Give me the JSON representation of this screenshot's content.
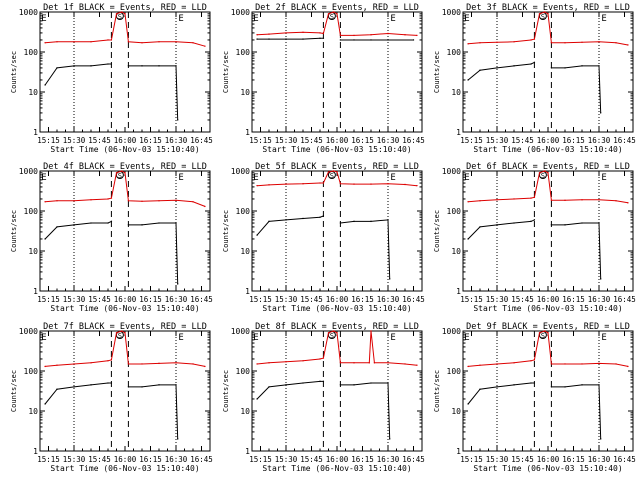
{
  "colors": {
    "events": "#000000",
    "lld": "#dd0000",
    "axes": "#000000",
    "background": "#ffffff"
  },
  "shared": {
    "xlabel": "Start Time (06-Nov-03 15:10:40)",
    "ylabel": "Counts/sec",
    "x_tick_labels": [
      "15:15",
      "15:30",
      "15:45",
      "16:00",
      "16:15",
      "16:30",
      "16:45"
    ],
    "y_tick_labels": [
      "1",
      "10",
      "100",
      "1000"
    ],
    "y_scale": "log",
    "marker_S": "S",
    "marker_E": "E"
  },
  "chart_data": [
    {
      "type": "line",
      "title": "Det 1f BLACK = Events, RED = LLD",
      "xlim": [
        "15:10",
        "16:50"
      ],
      "ylim": [
        1,
        1000
      ],
      "markers": {
        "dotted": [
          "15:30",
          "16:30"
        ],
        "dashed": [
          "15:52",
          "16:02"
        ],
        "S": "15:57",
        "E": "16:33"
      },
      "series": [
        {
          "name": "BLACK = Events",
          "x": [
            "15:13",
            "15:20",
            "15:30",
            "15:40",
            "15:50",
            "15:52",
            "15:58",
            "16:02",
            "16:10",
            "16:20",
            "16:30",
            "16:31"
          ],
          "y": [
            15,
            40,
            45,
            45,
            50,
            50,
            null,
            45,
            45,
            45,
            45,
            2
          ]
        },
        {
          "name": "RED = LLD",
          "x": [
            "15:13",
            "15:20",
            "15:30",
            "15:40",
            "15:50",
            "15:52",
            "15:55",
            "15:58",
            "16:00",
            "16:02",
            "16:10",
            "16:20",
            "16:30",
            "16:40",
            "16:47"
          ],
          "y": [
            170,
            180,
            180,
            180,
            200,
            200,
            900,
            1000,
            900,
            180,
            170,
            180,
            180,
            170,
            140
          ]
        }
      ]
    },
    {
      "type": "line",
      "title": "Det 2f BLACK = Events, RED = LLD",
      "xlim": [
        "15:10",
        "16:50"
      ],
      "ylim": [
        1,
        1000
      ],
      "markers": {
        "dotted": [
          "15:30",
          "16:30"
        ],
        "dashed": [
          "15:52",
          "16:02"
        ],
        "S": "15:57",
        "E": "16:33"
      },
      "series": [
        {
          "name": "BLACK = Events",
          "x": [
            "15:13",
            "15:20",
            "15:30",
            "15:40",
            "15:50",
            "15:52",
            "15:58",
            "16:02",
            "16:10",
            "16:20",
            "16:30",
            "16:45"
          ],
          "y": [
            210,
            210,
            210,
            210,
            220,
            220,
            null,
            200,
            200,
            200,
            200,
            200
          ]
        },
        {
          "name": "RED = LLD",
          "x": [
            "15:13",
            "15:20",
            "15:30",
            "15:40",
            "15:50",
            "15:52",
            "15:55",
            "15:58",
            "16:00",
            "16:02",
            "16:10",
            "16:20",
            "16:30",
            "16:40",
            "16:47"
          ],
          "y": [
            270,
            280,
            300,
            310,
            300,
            290,
            900,
            1000,
            900,
            260,
            260,
            270,
            290,
            270,
            260
          ]
        }
      ]
    },
    {
      "type": "line",
      "title": "Det 3f BLACK = Events, RED = LLD",
      "xlim": [
        "15:10",
        "16:50"
      ],
      "ylim": [
        1,
        1000
      ],
      "markers": {
        "dotted": [
          "15:30",
          "16:30"
        ],
        "dashed": [
          "15:52",
          "16:02"
        ],
        "S": "15:57",
        "E": "16:33"
      },
      "series": [
        {
          "name": "BLACK = Events",
          "x": [
            "15:13",
            "15:20",
            "15:30",
            "15:40",
            "15:50",
            "15:52",
            "15:58",
            "16:02",
            "16:10",
            "16:20",
            "16:30",
            "16:31"
          ],
          "y": [
            20,
            35,
            40,
            45,
            50,
            55,
            null,
            40,
            40,
            45,
            45,
            3
          ]
        },
        {
          "name": "RED = LLD",
          "x": [
            "15:13",
            "15:20",
            "15:30",
            "15:40",
            "15:50",
            "15:52",
            "15:55",
            "15:58",
            "16:00",
            "16:02",
            "16:10",
            "16:20",
            "16:30",
            "16:40",
            "16:47"
          ],
          "y": [
            160,
            170,
            175,
            180,
            200,
            210,
            900,
            1000,
            900,
            170,
            170,
            175,
            180,
            170,
            150
          ]
        }
      ]
    },
    {
      "type": "line",
      "title": "Det 4f BLACK = Events, RED = LLD",
      "xlim": [
        "15:10",
        "16:50"
      ],
      "ylim": [
        1,
        1000
      ],
      "markers": {
        "dotted": [
          "15:30",
          "16:30"
        ],
        "dashed": [
          "15:52",
          "16:02"
        ],
        "S": "15:57",
        "E": "16:33"
      },
      "series": [
        {
          "name": "BLACK = Events",
          "x": [
            "15:13",
            "15:20",
            "15:30",
            "15:40",
            "15:50",
            "15:52",
            "15:58",
            "16:02",
            "16:10",
            "16:20",
            "16:30",
            "16:31"
          ],
          "y": [
            20,
            40,
            45,
            50,
            50,
            55,
            null,
            45,
            45,
            50,
            50,
            1.5
          ]
        },
        {
          "name": "RED = LLD",
          "x": [
            "15:13",
            "15:20",
            "15:30",
            "15:40",
            "15:50",
            "15:52",
            "15:55",
            "15:58",
            "16:00",
            "16:02",
            "16:10",
            "16:20",
            "16:30",
            "16:40",
            "16:47"
          ],
          "y": [
            170,
            180,
            180,
            190,
            200,
            210,
            900,
            1000,
            900,
            180,
            175,
            180,
            185,
            170,
            130
          ]
        }
      ]
    },
    {
      "type": "line",
      "title": "Det 5f BLACK = Events, RED = LLD",
      "xlim": [
        "15:10",
        "16:50"
      ],
      "ylim": [
        1,
        1000
      ],
      "markers": {
        "dotted": [
          "15:30",
          "16:30"
        ],
        "dashed": [
          "15:52",
          "16:02"
        ],
        "S": "15:57",
        "E": "16:33"
      },
      "series": [
        {
          "name": "BLACK = Events",
          "x": [
            "15:13",
            "15:20",
            "15:30",
            "15:40",
            "15:50",
            "15:52",
            "15:58",
            "16:02",
            "16:10",
            "16:20",
            "16:30",
            "16:31"
          ],
          "y": [
            25,
            55,
            60,
            65,
            70,
            75,
            null,
            50,
            55,
            55,
            60,
            2
          ]
        },
        {
          "name": "RED = LLD",
          "x": [
            "15:13",
            "15:20",
            "15:30",
            "15:40",
            "15:50",
            "15:52",
            "15:55",
            "15:58",
            "16:00",
            "16:02",
            "16:10",
            "16:20",
            "16:30",
            "16:40",
            "16:47"
          ],
          "y": [
            430,
            450,
            470,
            480,
            500,
            500,
            950,
            1000,
            950,
            480,
            470,
            470,
            480,
            460,
            430
          ]
        }
      ]
    },
    {
      "type": "line",
      "title": "Det 6f BLACK = Events, RED = LLD",
      "xlim": [
        "15:10",
        "16:50"
      ],
      "ylim": [
        1,
        1000
      ],
      "markers": {
        "dotted": [
          "15:30",
          "16:30"
        ],
        "dashed": [
          "15:52",
          "16:02"
        ],
        "S": "15:57",
        "E": "16:33"
      },
      "series": [
        {
          "name": "BLACK = Events",
          "x": [
            "15:13",
            "15:20",
            "15:30",
            "15:40",
            "15:50",
            "15:52",
            "15:58",
            "16:02",
            "16:10",
            "16:20",
            "16:30",
            "16:31"
          ],
          "y": [
            20,
            40,
            45,
            50,
            55,
            60,
            null,
            45,
            45,
            50,
            50,
            2
          ]
        },
        {
          "name": "RED = LLD",
          "x": [
            "15:13",
            "15:20",
            "15:30",
            "15:40",
            "15:50",
            "15:52",
            "15:55",
            "15:58",
            "16:00",
            "16:02",
            "16:10",
            "16:20",
            "16:30",
            "16:40",
            "16:47"
          ],
          "y": [
            170,
            180,
            190,
            200,
            210,
            220,
            900,
            1000,
            900,
            185,
            185,
            190,
            190,
            180,
            160
          ]
        }
      ]
    },
    {
      "type": "line",
      "title": "Det 7f BLACK = Events, RED = LLD",
      "xlim": [
        "15:10",
        "16:50"
      ],
      "ylim": [
        1,
        1000
      ],
      "markers": {
        "dotted": [
          "15:30",
          "16:30"
        ],
        "dashed": [
          "15:52",
          "16:02"
        ],
        "S": "15:57",
        "E": "16:33"
      },
      "series": [
        {
          "name": "BLACK = Events",
          "x": [
            "15:13",
            "15:20",
            "15:30",
            "15:40",
            "15:50",
            "15:52",
            "15:58",
            "16:02",
            "16:10",
            "16:20",
            "16:30",
            "16:31"
          ],
          "y": [
            15,
            35,
            40,
            45,
            50,
            50,
            null,
            40,
            40,
            45,
            45,
            2
          ]
        },
        {
          "name": "RED = LLD",
          "x": [
            "15:13",
            "15:20",
            "15:30",
            "15:40",
            "15:50",
            "15:52",
            "15:55",
            "15:58",
            "16:00",
            "16:02",
            "16:10",
            "16:20",
            "16:30",
            "16:40",
            "16:47"
          ],
          "y": [
            130,
            140,
            150,
            160,
            180,
            190,
            900,
            1000,
            900,
            150,
            150,
            155,
            160,
            150,
            130
          ]
        }
      ]
    },
    {
      "type": "line",
      "title": "Det 8f BLACK = Events, RED = LLD",
      "xlim": [
        "15:10",
        "16:50"
      ],
      "ylim": [
        1,
        1000
      ],
      "markers": {
        "dotted": [
          "15:30",
          "16:30"
        ],
        "dashed": [
          "15:52",
          "16:02"
        ],
        "S": "15:57",
        "E": "16:33"
      },
      "series": [
        {
          "name": "BLACK = Events",
          "x": [
            "15:13",
            "15:20",
            "15:30",
            "15:40",
            "15:50",
            "15:52",
            "15:58",
            "16:02",
            "16:10",
            "16:20",
            "16:30",
            "16:31"
          ],
          "y": [
            20,
            40,
            45,
            50,
            55,
            55,
            null,
            45,
            45,
            50,
            50,
            2
          ]
        },
        {
          "name": "RED = LLD",
          "x": [
            "15:13",
            "15:20",
            "15:30",
            "15:40",
            "15:50",
            "15:52",
            "15:55",
            "15:58",
            "16:00",
            "16:02",
            "16:10",
            "16:19",
            "16:20",
            "16:22",
            "16:30",
            "16:40",
            "16:47"
          ],
          "y": [
            150,
            160,
            170,
            180,
            200,
            210,
            900,
            1000,
            900,
            160,
            160,
            160,
            1000,
            160,
            160,
            150,
            140
          ]
        }
      ]
    },
    {
      "type": "line",
      "title": "Det 9f BLACK = Events, RED = LLD",
      "xlim": [
        "15:10",
        "16:50"
      ],
      "ylim": [
        1,
        1000
      ],
      "markers": {
        "dotted": [
          "15:30",
          "16:30"
        ],
        "dashed": [
          "15:52",
          "16:02"
        ],
        "S": "15:57",
        "E": "16:33"
      },
      "series": [
        {
          "name": "BLACK = Events",
          "x": [
            "15:13",
            "15:20",
            "15:30",
            "15:40",
            "15:50",
            "15:52",
            "15:58",
            "16:02",
            "16:10",
            "16:20",
            "16:30",
            "16:31"
          ],
          "y": [
            15,
            35,
            40,
            45,
            50,
            50,
            null,
            40,
            40,
            45,
            45,
            2
          ]
        },
        {
          "name": "RED = LLD",
          "x": [
            "15:13",
            "15:20",
            "15:30",
            "15:40",
            "15:50",
            "15:52",
            "15:55",
            "15:58",
            "16:00",
            "16:02",
            "16:10",
            "16:20",
            "16:30",
            "16:40",
            "16:47"
          ],
          "y": [
            130,
            140,
            150,
            160,
            180,
            190,
            900,
            1000,
            900,
            150,
            150,
            150,
            155,
            150,
            130
          ]
        }
      ]
    }
  ]
}
